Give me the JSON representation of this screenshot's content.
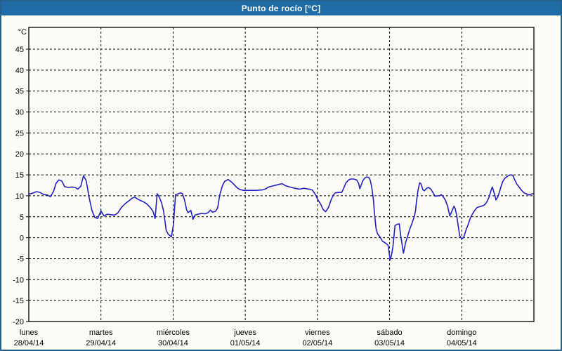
{
  "window": {
    "title": "Punto de rocío [°C]"
  },
  "colors": {
    "title_bar": "#1e6ba5",
    "title_text": "#ffffff",
    "frame_border": "#25628b",
    "background": "#fdfdf8",
    "plot_border": "#000000",
    "grid": "#000000",
    "line": "#2020c4",
    "label_text": "#000000"
  },
  "chart_data": {
    "type": "line",
    "title": "Punto de rocío [°C]",
    "unit_label": "°C",
    "ylabel": "°C",
    "xlabel": "",
    "ylim": [
      -20,
      50
    ],
    "grid": "dashed",
    "legend": "none",
    "y_ticks": [
      45,
      40,
      35,
      30,
      25,
      20,
      15,
      10,
      5,
      0,
      -5,
      -10,
      -15,
      -20
    ],
    "x_hours_total": 168,
    "x_days": [
      {
        "name": "lunes",
        "date": "28/04/14"
      },
      {
        "name": "martes",
        "date": "29/04/14"
      },
      {
        "name": "miércoles",
        "date": "30/04/14"
      },
      {
        "name": "jueves",
        "date": "01/05/14"
      },
      {
        "name": "viernes",
        "date": "02/05/14"
      },
      {
        "name": "sábado",
        "date": "03/05/14"
      },
      {
        "name": "domingo",
        "date": "04/05/14"
      }
    ],
    "series": [
      {
        "name": "Punto de rocío",
        "color": "#2020c4",
        "points": [
          [
            0,
            10.4
          ],
          [
            1.2,
            10.6
          ],
          [
            2.6,
            11.0
          ],
          [
            3.7,
            10.8
          ],
          [
            4.9,
            10.3
          ],
          [
            6.1,
            10.2
          ],
          [
            7.2,
            9.8
          ],
          [
            8.2,
            11.0
          ],
          [
            9.1,
            13.0
          ],
          [
            10,
            13.8
          ],
          [
            11,
            13.5
          ],
          [
            11.9,
            12.2
          ],
          [
            13.1,
            12.0
          ],
          [
            14.2,
            12.1
          ],
          [
            15.4,
            12.0
          ],
          [
            16.3,
            11.6
          ],
          [
            17.3,
            12.3
          ],
          [
            18.2,
            14.8
          ],
          [
            19.1,
            13.6
          ],
          [
            20.1,
            9.5
          ],
          [
            21,
            6.5
          ],
          [
            21.9,
            4.9
          ],
          [
            22.9,
            4.6
          ],
          [
            24,
            6.4
          ],
          [
            25,
            5.2
          ],
          [
            26.1,
            5.6
          ],
          [
            27.3,
            5.5
          ],
          [
            28.5,
            5.4
          ],
          [
            29.6,
            5.9
          ],
          [
            30.8,
            7.2
          ],
          [
            32,
            8.1
          ],
          [
            33.1,
            8.7
          ],
          [
            34.3,
            9.4
          ],
          [
            35.2,
            9.7
          ],
          [
            36.2,
            9.2
          ],
          [
            37.1,
            8.9
          ],
          [
            38.3,
            8.5
          ],
          [
            39.4,
            8.0
          ],
          [
            40.6,
            7.0
          ],
          [
            41.3,
            6.3
          ],
          [
            42,
            4.6
          ],
          [
            42.7,
            10.5
          ],
          [
            43.4,
            9.7
          ],
          [
            44.1,
            8.5
          ],
          [
            44.8,
            6.5
          ],
          [
            45.3,
            3.9
          ],
          [
            45.7,
            1.7
          ],
          [
            46.4,
            0.8
          ],
          [
            47.4,
            0.2
          ],
          [
            48.1,
            3.0
          ],
          [
            48.8,
            10.3
          ],
          [
            49.5,
            10.4
          ],
          [
            50.4,
            10.7
          ],
          [
            51.1,
            10.5
          ],
          [
            51.8,
            9.0
          ],
          [
            52.5,
            6.6
          ],
          [
            53,
            6.0
          ],
          [
            53.9,
            6.5
          ],
          [
            54.6,
            4.4
          ],
          [
            55.3,
            5.4
          ],
          [
            56.2,
            5.6
          ],
          [
            57.4,
            5.8
          ],
          [
            58.6,
            5.7
          ],
          [
            59.7,
            6.0
          ],
          [
            60.4,
            6.6
          ],
          [
            61.1,
            6.1
          ],
          [
            62.1,
            6.3
          ],
          [
            62.8,
            7.1
          ],
          [
            63.5,
            10.2
          ],
          [
            64.4,
            12.4
          ],
          [
            65.1,
            13.4
          ],
          [
            66.3,
            13.9
          ],
          [
            67.4,
            13.3
          ],
          [
            68.4,
            12.6
          ],
          [
            69.3,
            11.9
          ],
          [
            70.2,
            11.5
          ],
          [
            71.4,
            11.3
          ],
          [
            73.3,
            11.3
          ],
          [
            75.6,
            11.3
          ],
          [
            77.5,
            11.4
          ],
          [
            78.6,
            11.6
          ],
          [
            79.8,
            12.1
          ],
          [
            81.4,
            12.4
          ],
          [
            83.1,
            12.7
          ],
          [
            84.2,
            12.9
          ],
          [
            85.4,
            12.4
          ],
          [
            86.8,
            12.1
          ],
          [
            88.4,
            11.8
          ],
          [
            90.1,
            11.6
          ],
          [
            91.5,
            11.8
          ],
          [
            93.1,
            11.6
          ],
          [
            94.3,
            11.4
          ],
          [
            95.4,
            10.2
          ],
          [
            96.1,
            9.1
          ],
          [
            97.1,
            8.0
          ],
          [
            97.8,
            6.8
          ],
          [
            98.7,
            6.2
          ],
          [
            99.6,
            7.1
          ],
          [
            100.6,
            9.1
          ],
          [
            101.3,
            10.2
          ],
          [
            102,
            10.7
          ],
          [
            103.1,
            10.8
          ],
          [
            104.1,
            10.8
          ],
          [
            104.8,
            11.9
          ],
          [
            105.5,
            13.1
          ],
          [
            106.4,
            13.8
          ],
          [
            107.1,
            14.0
          ],
          [
            108,
            14.0
          ],
          [
            109,
            13.8
          ],
          [
            109.7,
            13.0
          ],
          [
            110.1,
            11.7
          ],
          [
            111.1,
            13.6
          ],
          [
            111.8,
            14.3
          ],
          [
            112.5,
            14.5
          ],
          [
            113.2,
            14.3
          ],
          [
            113.6,
            13.6
          ],
          [
            114.1,
            11.9
          ],
          [
            114.6,
            9.1
          ],
          [
            115,
            5.6
          ],
          [
            115.5,
            2.2
          ],
          [
            116,
            0.9
          ],
          [
            116.7,
            0.3
          ],
          [
            117.6,
            -0.8
          ],
          [
            118.5,
            -1.2
          ],
          [
            119.5,
            -1.8
          ],
          [
            120.2,
            -5.3
          ],
          [
            120.6,
            -4.3
          ],
          [
            121.1,
            -2.2
          ],
          [
            121.8,
            2.9
          ],
          [
            122.5,
            3.2
          ],
          [
            123.2,
            3.3
          ],
          [
            123.7,
            0.5
          ],
          [
            124.6,
            -3.7
          ],
          [
            125.3,
            -1.2
          ],
          [
            126,
            0.4
          ],
          [
            126.7,
            2.0
          ],
          [
            127.4,
            3.3
          ],
          [
            128.1,
            4.8
          ],
          [
            128.6,
            6.3
          ],
          [
            129,
            9.0
          ],
          [
            129.5,
            11.5
          ],
          [
            130,
            13.1
          ],
          [
            130.4,
            12.9
          ],
          [
            131.1,
            11.4
          ],
          [
            131.6,
            11.2
          ],
          [
            132.3,
            11.8
          ],
          [
            133,
            12.0
          ],
          [
            133.7,
            11.6
          ],
          [
            134.4,
            10.8
          ],
          [
            135.1,
            9.9
          ],
          [
            136,
            10.0
          ],
          [
            136.7,
            10.0
          ],
          [
            137.2,
            10.3
          ],
          [
            137.9,
            9.7
          ],
          [
            138.6,
            8.9
          ],
          [
            139.3,
            7.5
          ],
          [
            140,
            5.2
          ],
          [
            140.7,
            6.3
          ],
          [
            141.4,
            7.5
          ],
          [
            141.8,
            7.0
          ],
          [
            142.3,
            5.4
          ],
          [
            142.8,
            2.9
          ],
          [
            143.3,
            0.5
          ],
          [
            144,
            -0.3
          ],
          [
            144.7,
            0.2
          ],
          [
            145.4,
            1.8
          ],
          [
            146.1,
            3.1
          ],
          [
            146.8,
            4.6
          ],
          [
            147.5,
            5.6
          ],
          [
            148.4,
            6.6
          ],
          [
            149.1,
            7.2
          ],
          [
            150,
            7.4
          ],
          [
            151,
            7.6
          ],
          [
            151.7,
            7.9
          ],
          [
            152.4,
            8.6
          ],
          [
            153.1,
            9.7
          ],
          [
            153.8,
            11.4
          ],
          [
            154.2,
            12.1
          ],
          [
            154.9,
            10.4
          ],
          [
            155.4,
            9.0
          ],
          [
            156.1,
            9.9
          ],
          [
            156.8,
            11.6
          ],
          [
            157.5,
            13.2
          ],
          [
            158.2,
            14.1
          ],
          [
            159.1,
            14.6
          ],
          [
            159.8,
            14.9
          ],
          [
            160.5,
            15.0
          ],
          [
            161,
            14.9
          ],
          [
            161.7,
            13.7
          ],
          [
            162.4,
            12.7
          ],
          [
            163.1,
            12.1
          ],
          [
            163.8,
            11.4
          ],
          [
            164.7,
            10.7
          ],
          [
            165.7,
            10.4
          ],
          [
            166.4,
            10.2
          ],
          [
            167.1,
            10.4
          ],
          [
            167.8,
            10.5
          ]
        ]
      }
    ]
  }
}
